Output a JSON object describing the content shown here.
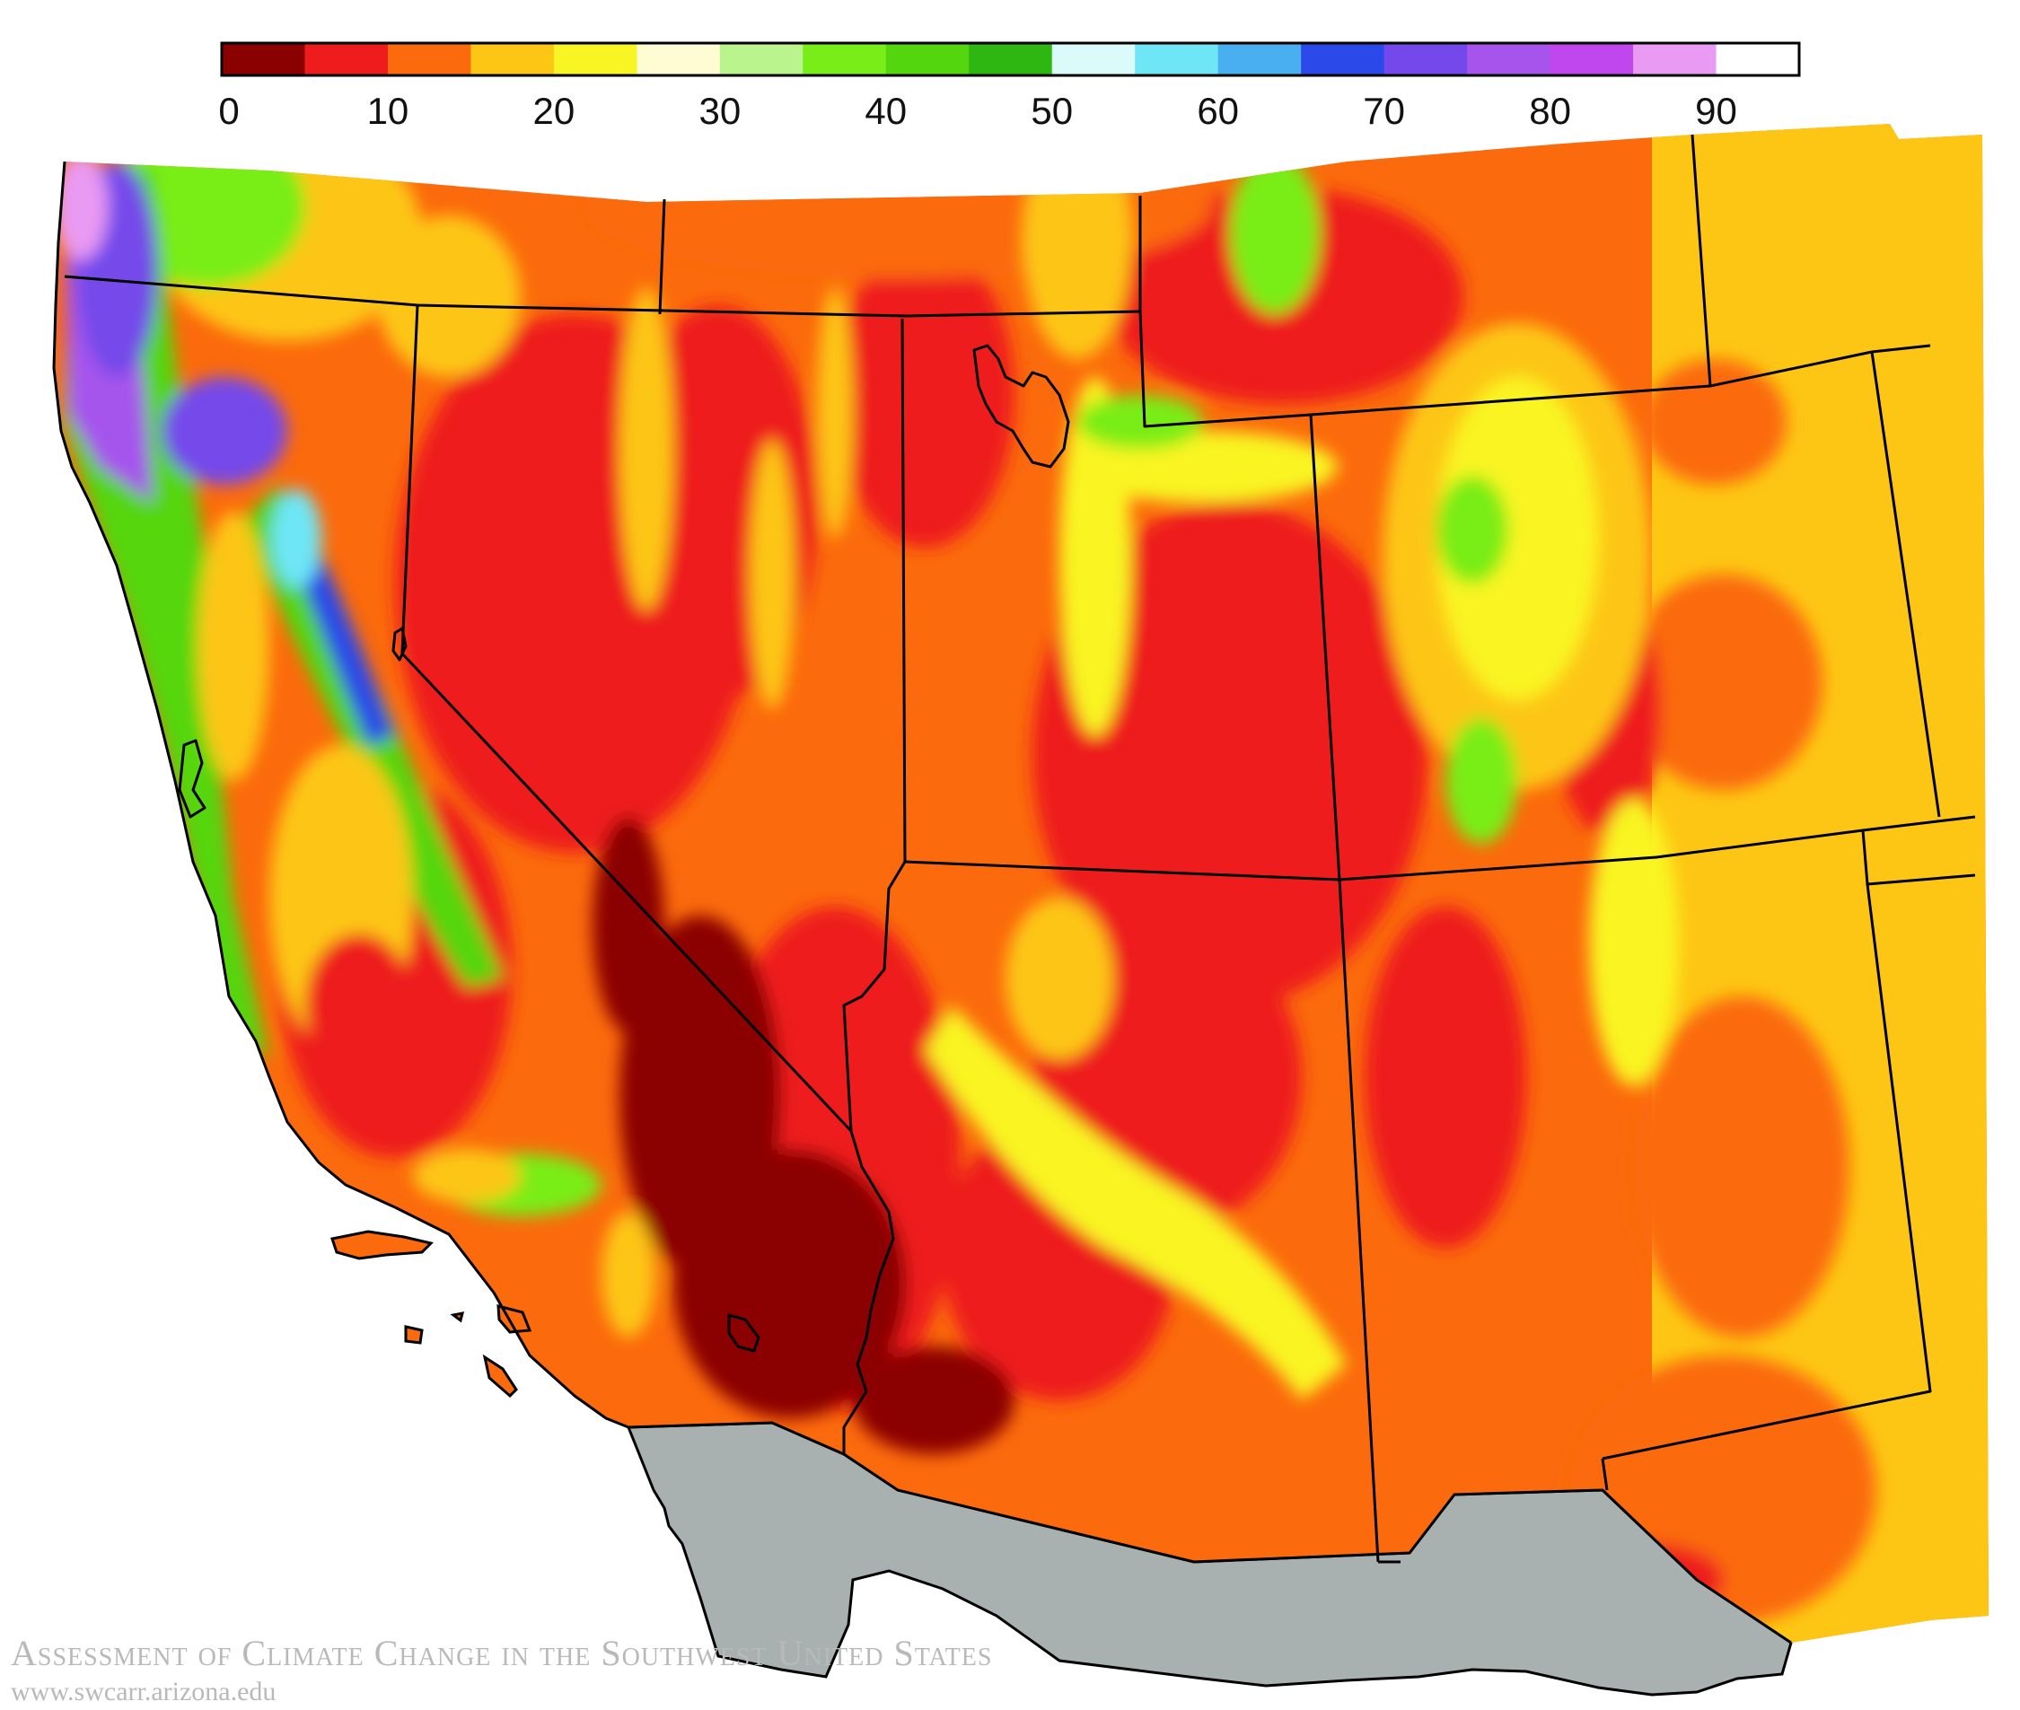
{
  "legend": {
    "tick_labels": [
      "0",
      "10",
      "20",
      "30",
      "40",
      "50",
      "60",
      "70",
      "80",
      "90"
    ],
    "bins": [
      {
        "from": 0,
        "to": 5,
        "color": "#8b0000"
      },
      {
        "from": 5,
        "to": 10,
        "color": "#ee1c1c"
      },
      {
        "from": 10,
        "to": 15,
        "color": "#fb6a0c"
      },
      {
        "from": 15,
        "to": 20,
        "color": "#fdc614"
      },
      {
        "from": 20,
        "to": 25,
        "color": "#f9f423"
      },
      {
        "from": 25,
        "to": 30,
        "color": "#fffbd2"
      },
      {
        "from": 30,
        "to": 35,
        "color": "#b9f48d"
      },
      {
        "from": 35,
        "to": 40,
        "color": "#79ed18"
      },
      {
        "from": 40,
        "to": 45,
        "color": "#54d60f"
      },
      {
        "from": 45,
        "to": 50,
        "color": "#2eb611"
      },
      {
        "from": 50,
        "to": 55,
        "color": "#dbfbfb"
      },
      {
        "from": 55,
        "to": 60,
        "color": "#6ee6f6"
      },
      {
        "from": 60,
        "to": 65,
        "color": "#49aff0"
      },
      {
        "from": 65,
        "to": 70,
        "color": "#2b49e9"
      },
      {
        "from": 70,
        "to": 75,
        "color": "#7448ea"
      },
      {
        "from": 75,
        "to": 80,
        "color": "#a654ec"
      },
      {
        "from": 80,
        "to": 85,
        "color": "#c046ee"
      },
      {
        "from": 85,
        "to": 90,
        "color": "#e99af2"
      },
      {
        "from": 90,
        "to": 95,
        "color": "#ffffff"
      }
    ]
  },
  "map": {
    "region": "Southwestern United States",
    "mexico_fill": "#a9b0b0",
    "border_color": "#000000"
  },
  "credit": {
    "title": "Assessment of Climate Change in the Southwest United States",
    "url": "www.swcarr.arizona.edu"
  }
}
